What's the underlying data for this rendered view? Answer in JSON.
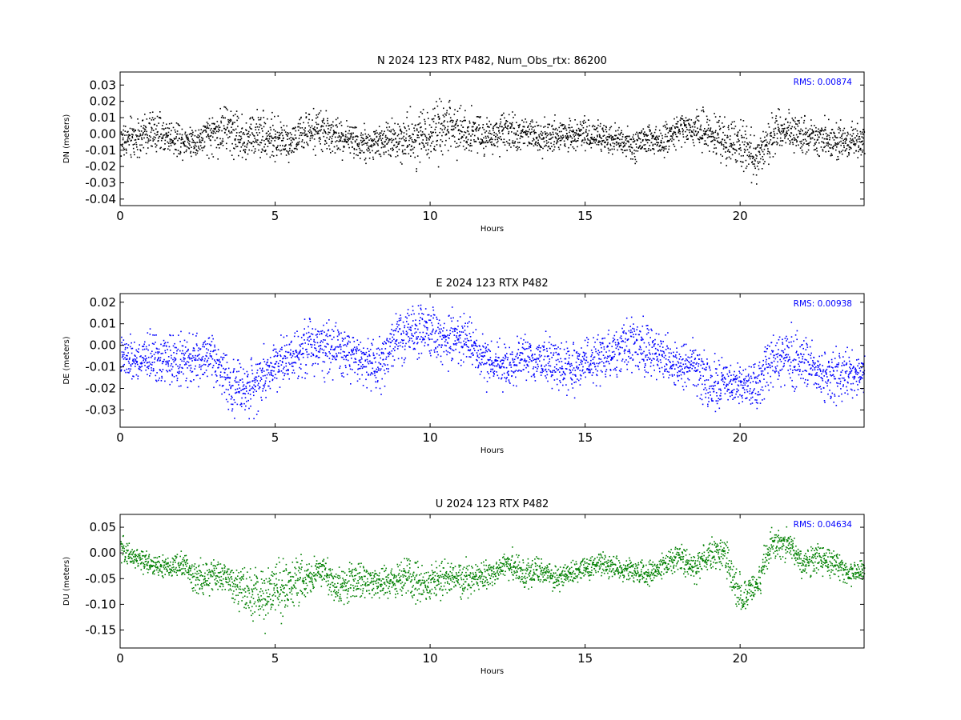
{
  "chart_data": [
    {
      "type": "scatter",
      "title": "N 2024 123 RTX  P482, Num_Obs_rtx: 86200",
      "xlabel": "Hours",
      "ylabel": "DN (meters)",
      "xlim": [
        0,
        24
      ],
      "ylim": [
        -0.044,
        0.038
      ],
      "xticks": [
        "0",
        "5",
        "10",
        "15",
        "20"
      ],
      "yticks": [
        "0.03",
        "0.02",
        "0.01",
        "0.00",
        "-0.01",
        "-0.02",
        "-0.03",
        "-0.04"
      ],
      "ytick_values": [
        0.03,
        0.02,
        0.01,
        0.0,
        -0.01,
        -0.02,
        -0.03,
        -0.04
      ],
      "color": "#000000",
      "annotation": "RMS:  0.00874",
      "series": [
        {
          "x": [
            0,
            0.5,
            1,
            1.5,
            2,
            2.5,
            3,
            3.5,
            4,
            4.5,
            5,
            5.5,
            6,
            6.5,
            7,
            7.5,
            8,
            8.5,
            9,
            9.5,
            10,
            10.5,
            11,
            11.5,
            12,
            12.5,
            13,
            13.5,
            14,
            14.5,
            15,
            15.5,
            16,
            16.5,
            17,
            17.5,
            18,
            18.5,
            19,
            19.5,
            20,
            20.5,
            21,
            21.5,
            22,
            22.5,
            23,
            23.5,
            24
          ],
          "y": [
            -0.004,
            -0.002,
            0.002,
            -0.001,
            -0.003,
            -0.004,
            0.001,
            0.004,
            -0.003,
            0.002,
            -0.003,
            -0.004,
            0.001,
            0.002,
            -0.002,
            -0.003,
            -0.006,
            -0.004,
            -0.002,
            -0.002,
            0.002,
            0.004,
            0.004,
            0.001,
            -0.001,
            0.001,
            0.002,
            -0.001,
            -0.002,
            0.001,
            0.0,
            -0.002,
            -0.004,
            -0.006,
            -0.004,
            -0.004,
            0.004,
            0.004,
            0.001,
            -0.004,
            -0.008,
            -0.013,
            0.0,
            0.004,
            0.001,
            -0.002,
            -0.004,
            -0.003,
            -0.004
          ],
          "spread": [
            0.011,
            0.012,
            0.011,
            0.01,
            0.009,
            0.009,
            0.012,
            0.015,
            0.013,
            0.013,
            0.011,
            0.01,
            0.01,
            0.011,
            0.01,
            0.01,
            0.01,
            0.01,
            0.012,
            0.015,
            0.016,
            0.016,
            0.014,
            0.011,
            0.01,
            0.01,
            0.01,
            0.01,
            0.01,
            0.009,
            0.009,
            0.008,
            0.008,
            0.008,
            0.009,
            0.009,
            0.008,
            0.009,
            0.012,
            0.013,
            0.013,
            0.014,
            0.012,
            0.011,
            0.011,
            0.01,
            0.01,
            0.01,
            0.01
          ]
        }
      ]
    },
    {
      "type": "scatter",
      "title": "E 2024 123 RTX  P482",
      "xlabel": "Hours",
      "ylabel": "DE (meters)",
      "xlim": [
        0,
        24
      ],
      "ylim": [
        -0.038,
        0.024
      ],
      "xticks": [
        "0",
        "5",
        "10",
        "15",
        "20"
      ],
      "yticks": [
        "0.02",
        "0.01",
        "0.00",
        "-0.01",
        "-0.02",
        "-0.03"
      ],
      "ytick_values": [
        0.02,
        0.01,
        0.0,
        -0.01,
        -0.02,
        -0.03
      ],
      "color": "#0000ff",
      "annotation": "RMS:  0.00938",
      "series": [
        {
          "x": [
            0,
            0.5,
            1,
            1.5,
            2,
            2.5,
            3,
            3.5,
            4,
            4.5,
            5,
            5.5,
            6,
            6.5,
            7,
            7.5,
            8,
            8.5,
            9,
            9.5,
            10,
            10.5,
            11,
            11.5,
            12,
            12.5,
            13,
            13.5,
            14,
            14.5,
            15,
            15.5,
            16,
            16.5,
            17,
            17.5,
            18,
            18.5,
            19,
            19.5,
            20,
            20.5,
            21,
            21.5,
            22,
            22.5,
            23,
            23.5,
            24
          ],
          "y": [
            -0.006,
            -0.007,
            -0.005,
            -0.006,
            -0.007,
            -0.006,
            -0.004,
            -0.018,
            -0.021,
            -0.015,
            -0.008,
            -0.004,
            -0.001,
            0.002,
            -0.002,
            -0.004,
            -0.009,
            -0.006,
            0.004,
            0.006,
            0.006,
            0.003,
            0.003,
            -0.003,
            -0.008,
            -0.01,
            -0.007,
            -0.005,
            -0.009,
            -0.011,
            -0.008,
            -0.006,
            -0.003,
            0.001,
            -0.002,
            -0.006,
            -0.009,
            -0.008,
            -0.019,
            -0.016,
            -0.019,
            -0.017,
            -0.007,
            -0.004,
            -0.008,
            -0.011,
            -0.014,
            -0.013,
            -0.012
          ],
          "spread": [
            0.009,
            0.009,
            0.01,
            0.01,
            0.009,
            0.009,
            0.01,
            0.011,
            0.011,
            0.011,
            0.01,
            0.01,
            0.011,
            0.012,
            0.012,
            0.011,
            0.01,
            0.011,
            0.011,
            0.011,
            0.011,
            0.011,
            0.011,
            0.01,
            0.01,
            0.01,
            0.01,
            0.01,
            0.01,
            0.01,
            0.009,
            0.01,
            0.01,
            0.011,
            0.011,
            0.01,
            0.009,
            0.01,
            0.011,
            0.011,
            0.011,
            0.011,
            0.011,
            0.012,
            0.011,
            0.01,
            0.01,
            0.01,
            0.01
          ]
        }
      ]
    },
    {
      "type": "scatter",
      "title": "U 2024 123 RTX  P482",
      "xlabel": "Hours",
      "ylabel": "DU (meters)",
      "xlim": [
        0,
        24
      ],
      "ylim": [
        -0.185,
        0.075
      ],
      "xticks": [
        "0",
        "5",
        "10",
        "15",
        "20"
      ],
      "yticks": [
        "0.05",
        "0.00",
        "-0.05",
        "-0.10",
        "-0.15"
      ],
      "ytick_values": [
        0.05,
        0.0,
        -0.05,
        -0.1,
        -0.15
      ],
      "color": "#008000",
      "annotation": "RMS:  0.04634",
      "series": [
        {
          "x": [
            0,
            0.5,
            1,
            1.5,
            2,
            2.5,
            3,
            3.5,
            4,
            4.5,
            5,
            5.5,
            6,
            6.5,
            7,
            7.5,
            8,
            8.5,
            9,
            9.5,
            10,
            10.5,
            11,
            11.5,
            12,
            12.5,
            13,
            13.5,
            14,
            14.5,
            15,
            15.5,
            16,
            16.5,
            17,
            17.5,
            18,
            18.5,
            19,
            19.5,
            20,
            20.5,
            21,
            21.5,
            22,
            22.5,
            23,
            23.5,
            24
          ],
          "y": [
            0.01,
            -0.01,
            -0.02,
            -0.03,
            -0.02,
            -0.05,
            -0.04,
            -0.05,
            -0.07,
            -0.09,
            -0.07,
            -0.06,
            -0.05,
            -0.03,
            -0.07,
            -0.05,
            -0.05,
            -0.06,
            -0.05,
            -0.05,
            -0.06,
            -0.05,
            -0.05,
            -0.05,
            -0.04,
            -0.02,
            -0.04,
            -0.03,
            -0.05,
            -0.04,
            -0.03,
            -0.02,
            -0.03,
            -0.03,
            -0.04,
            -0.02,
            -0.01,
            -0.03,
            0.0,
            0.0,
            -0.09,
            -0.06,
            0.02,
            0.02,
            -0.02,
            -0.01,
            -0.02,
            -0.04,
            -0.03
          ],
          "spread": [
            0.02,
            0.02,
            0.02,
            0.02,
            0.025,
            0.03,
            0.03,
            0.03,
            0.04,
            0.05,
            0.05,
            0.04,
            0.035,
            0.03,
            0.035,
            0.03,
            0.03,
            0.03,
            0.03,
            0.035,
            0.035,
            0.03,
            0.03,
            0.025,
            0.025,
            0.025,
            0.025,
            0.025,
            0.025,
            0.02,
            0.02,
            0.02,
            0.02,
            0.02,
            0.02,
            0.02,
            0.025,
            0.025,
            0.025,
            0.03,
            0.035,
            0.035,
            0.03,
            0.025,
            0.025,
            0.025,
            0.025,
            0.02,
            0.02
          ]
        }
      ]
    }
  ]
}
